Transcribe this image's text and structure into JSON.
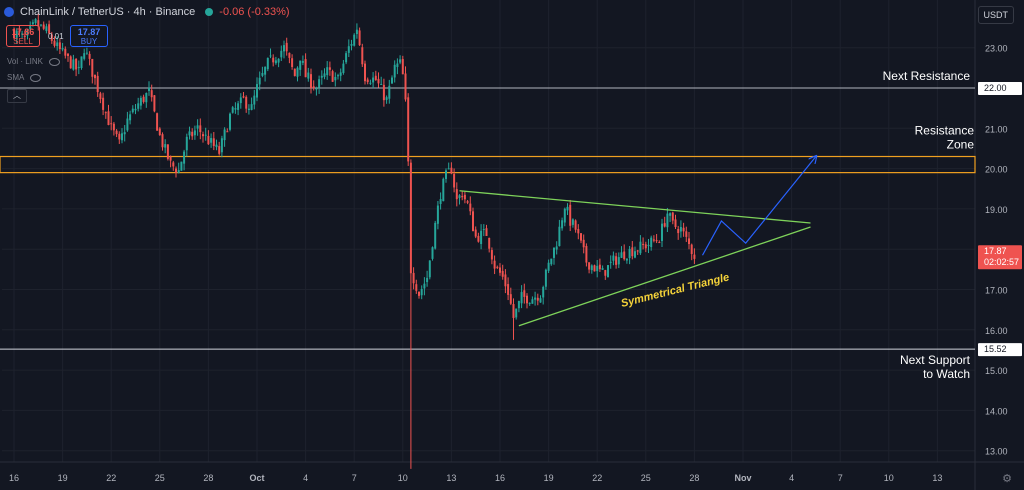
{
  "header": {
    "symbol": "ChainLink / TetherUS · 4h · Binance",
    "change": "-0.06 (-0.33%)"
  },
  "trade": {
    "sell_price": "17.86",
    "sell_label": "SELL",
    "buy_price": "17.87",
    "buy_label": "BUY",
    "spread": "0.01"
  },
  "indicators": [
    {
      "label": "Vol · LINK"
    },
    {
      "label": "SMA"
    }
  ],
  "currency_button": "USDT",
  "colors": {
    "background": "#131722",
    "up": "#26a69a",
    "down": "#ef5350",
    "resistance_zone": "#f0a020",
    "triangle": "#7ed35a",
    "projection": "#2962ff",
    "annotation": "#f5d33a"
  },
  "chart_data": {
    "type": "candlestick",
    "x_axis": {
      "tick_labels": [
        "16",
        "19",
        "22",
        "25",
        "28",
        "Oct",
        "4",
        "7",
        "10",
        "13",
        "16",
        "19",
        "22",
        "25",
        "28",
        "Nov",
        "4",
        "7",
        "10",
        "13"
      ],
      "tick_bars": [
        0,
        18,
        36,
        54,
        72,
        90,
        108,
        126,
        144,
        162,
        180,
        198,
        216,
        234,
        252,
        270,
        288,
        306,
        324,
        342
      ],
      "bold_labels": [
        "Oct",
        "Nov"
      ]
    },
    "y_axis": {
      "ticks": [
        "13.00",
        "14.00",
        "15.00",
        "16.00",
        "17.00",
        "18.00",
        "19.00",
        "20.00",
        "21.00",
        "22.00",
        "23.00"
      ],
      "range": [
        12.5,
        23.6
      ]
    },
    "price_labels": {
      "current_price": "17.87",
      "countdown": "02:02:57",
      "next_resistance": "22.00",
      "next_support": "15.52"
    },
    "levels": {
      "next_resistance_price": 22.0,
      "next_support_price": 15.52,
      "resistance_zone": [
        19.9,
        20.3
      ]
    },
    "annotations": {
      "next_resistance": "Next Resistance",
      "resistance_zone": [
        "Resistance",
        "Zone"
      ],
      "next_support": [
        "Next Support",
        "to Watch"
      ],
      "pattern": "Symmetrical Triangle"
    },
    "triangle": {
      "upper": [
        [
          165,
          19.45
        ],
        [
          295,
          18.65
        ]
      ],
      "lower": [
        [
          187,
          16.1
        ],
        [
          295,
          18.55
        ]
      ],
      "lower_extended": [
        [
          187,
          16.1
        ],
        [
          295,
          18.55
        ]
      ]
    },
    "projection": [
      [
        255,
        17.85
      ],
      [
        262,
        18.7
      ],
      [
        271,
        18.15
      ],
      [
        297,
        20.3
      ]
    ],
    "path_anchors": [
      [
        0,
        23.4
      ],
      [
        4,
        23.2
      ],
      [
        8,
        23.6
      ],
      [
        12,
        23.4
      ],
      [
        16,
        23.0
      ],
      [
        20,
        22.7
      ],
      [
        24,
        22.4
      ],
      [
        26,
        23.0
      ],
      [
        28,
        22.6
      ],
      [
        36,
        21.0
      ],
      [
        39,
        20.6
      ],
      [
        42,
        21.2
      ],
      [
        46,
        21.6
      ],
      [
        50,
        21.9
      ],
      [
        54,
        20.8
      ],
      [
        58,
        20.1
      ],
      [
        61,
        19.95
      ],
      [
        64,
        20.7
      ],
      [
        68,
        21.0
      ],
      [
        72,
        20.7
      ],
      [
        76,
        20.4
      ],
      [
        80,
        21.3
      ],
      [
        85,
        21.7
      ],
      [
        88,
        21.5
      ],
      [
        90,
        22.0
      ],
      [
        94,
        22.6
      ],
      [
        100,
        23.0
      ],
      [
        104,
        22.3
      ],
      [
        106,
        22.8
      ],
      [
        108,
        22.3
      ],
      [
        112,
        22.0
      ],
      [
        116,
        22.4
      ],
      [
        120,
        22.2
      ],
      [
        124,
        23.0
      ],
      [
        126,
        23.3
      ],
      [
        127,
        23.5
      ],
      [
        130,
        22.3
      ],
      [
        134,
        22.2
      ],
      [
        138,
        21.7
      ],
      [
        141,
        22.5
      ],
      [
        143,
        22.6
      ],
      [
        144,
        22.3
      ],
      [
        145,
        21.6
      ],
      [
        146,
        20.1
      ],
      [
        147,
        17.5
      ],
      [
        150,
        16.9
      ],
      [
        153,
        17.3
      ],
      [
        155,
        18.2
      ],
      [
        158,
        19.4
      ],
      [
        160,
        19.8
      ],
      [
        162,
        20.0
      ],
      [
        164,
        19.2
      ],
      [
        166,
        19.4
      ],
      [
        168,
        19.1
      ],
      [
        171,
        18.3
      ],
      [
        175,
        18.4
      ],
      [
        178,
        17.6
      ],
      [
        181,
        17.3
      ],
      [
        183,
        16.95
      ],
      [
        185,
        16.3
      ],
      [
        188,
        16.8
      ],
      [
        192,
        16.8
      ],
      [
        195,
        16.9
      ],
      [
        198,
        17.6
      ],
      [
        201,
        18.2
      ],
      [
        204,
        19.1
      ],
      [
        206,
        18.7
      ],
      [
        208,
        18.5
      ],
      [
        210,
        18.1
      ],
      [
        212,
        17.7
      ],
      [
        214,
        17.6
      ],
      [
        218,
        17.4
      ],
      [
        222,
        17.7
      ],
      [
        226,
        17.9
      ],
      [
        230,
        18.0
      ],
      [
        234,
        18.1
      ],
      [
        237,
        18.2
      ],
      [
        239,
        18.3
      ],
      [
        242,
        18.9
      ],
      [
        244,
        18.6
      ],
      [
        247,
        18.5
      ],
      [
        250,
        18.1
      ],
      [
        252,
        17.85
      ]
    ]
  }
}
